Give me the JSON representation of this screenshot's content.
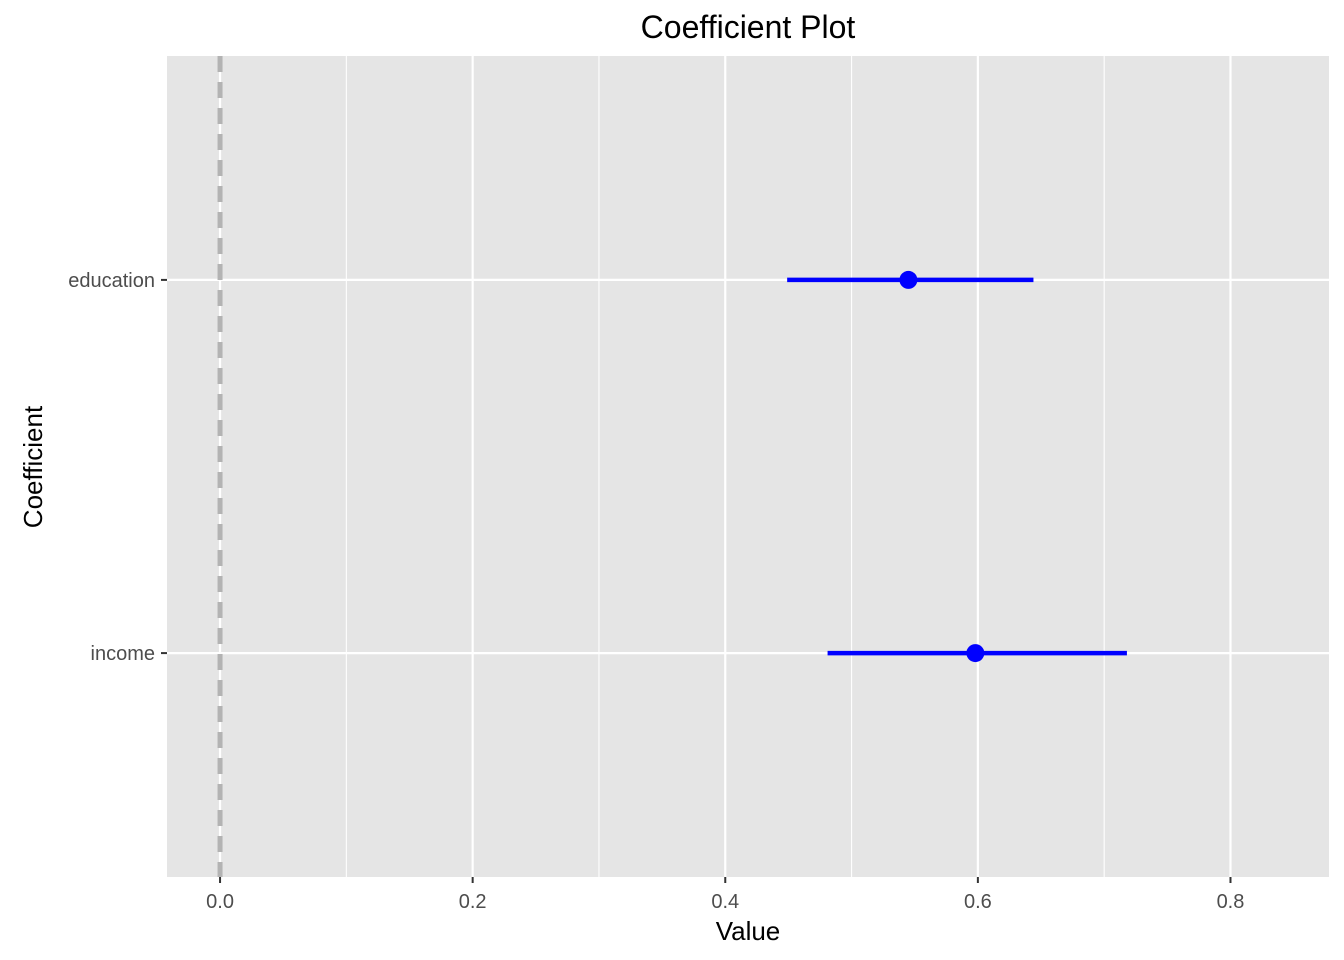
{
  "chart_data": {
    "type": "scatter",
    "subtype": "coefficient-plot",
    "title": "Coefficient Plot",
    "xlabel": "Value",
    "ylabel": "Coefficient",
    "xlim": [
      -0.042,
      0.878
    ],
    "x_ticks": [
      0.0,
      0.2,
      0.4,
      0.6,
      0.8
    ],
    "x_tick_labels": [
      "0.0",
      "0.2",
      "0.4",
      "0.6",
      "0.8"
    ],
    "categories": [
      "education",
      "income"
    ],
    "series": [
      {
        "values": [
          0.545,
          0.598
        ],
        "lower": [
          0.449,
          0.481
        ],
        "upper": [
          0.644,
          0.718
        ]
      }
    ],
    "reference_line": {
      "x": 0,
      "style": "dashed"
    },
    "grid": true,
    "legend": "none",
    "colors": {
      "panel": "#e5e5e5",
      "grid": "#ffffff",
      "series": "#0000ff",
      "reference": "#b3b3b3"
    }
  }
}
